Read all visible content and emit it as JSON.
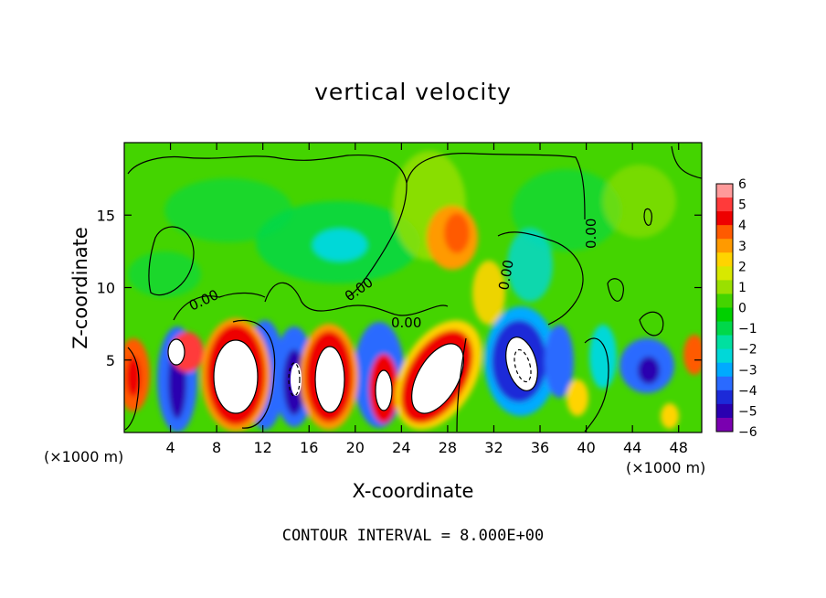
{
  "chart_data": {
    "type": "heatmap",
    "title": "vertical velocity",
    "xlabel": "X-coordinate",
    "ylabel": "Z-coordinate",
    "x_unit_left": "(×1000 m)",
    "x_unit_right": "(×1000 m)",
    "footer": "CONTOUR INTERVAL = 8.000E+00",
    "xlim": [
      0,
      50
    ],
    "ylim": [
      0,
      20
    ],
    "x_ticks": [
      "4",
      "8",
      "12",
      "16",
      "20",
      "24",
      "28",
      "32",
      "36",
      "40",
      "44",
      "48"
    ],
    "x_tick_values": [
      4,
      8,
      12,
      16,
      20,
      24,
      28,
      32,
      36,
      40,
      44,
      48
    ],
    "y_ticks": [
      "5",
      "10",
      "15"
    ],
    "y_tick_values": [
      5,
      10,
      15
    ],
    "colorbar": {
      "min": -6,
      "max": 6,
      "labels": [
        "6",
        "5",
        "4",
        "3",
        "2",
        "1",
        "0",
        "−1",
        "−2",
        "−3",
        "−4",
        "−5",
        "−6"
      ],
      "values": [
        6,
        5,
        4,
        3,
        2,
        1,
        0,
        -1,
        -2,
        -3,
        -4,
        -5,
        -6
      ],
      "colors": [
        "#ff9a9a",
        "#ff3a3a",
        "#ee0000",
        "#ff5a00",
        "#ff9a00",
        "#ffd400",
        "#d8e800",
        "#9ae000",
        "#44d400",
        "#00d000",
        "#00d84a",
        "#00e0a0",
        "#00d8d8",
        "#00aaff",
        "#2a6aff",
        "#1c2ad8",
        "#2a00b0",
        "#7a00b0"
      ]
    },
    "contour_labels": [
      "0.00",
      "0.00",
      "0.00",
      "0.00",
      "0.00"
    ],
    "features": [
      {
        "x": 5.0,
        "z": 4.2,
        "sign": "+",
        "amplitude": 8
      },
      {
        "x": 9.5,
        "z": 3.8,
        "sign": "+",
        "amplitude": 14
      },
      {
        "x": 14.5,
        "z": 3.5,
        "sign": "-",
        "amplitude": 8
      },
      {
        "x": 18.5,
        "z": 3.8,
        "sign": "+",
        "amplitude": 12
      },
      {
        "x": 22.5,
        "z": 3.0,
        "sign": "+",
        "amplitude": 8
      },
      {
        "x": 27.0,
        "z": 3.8,
        "sign": "+",
        "amplitude": 14
      },
      {
        "x": 34.0,
        "z": 5.0,
        "sign": "-",
        "amplitude": 12
      },
      {
        "x": 29.0,
        "z": 13.5,
        "sign": "+",
        "amplitude": 3
      },
      {
        "x": 45.5,
        "z": 4.5,
        "sign": "-",
        "amplitude": 5
      }
    ]
  }
}
